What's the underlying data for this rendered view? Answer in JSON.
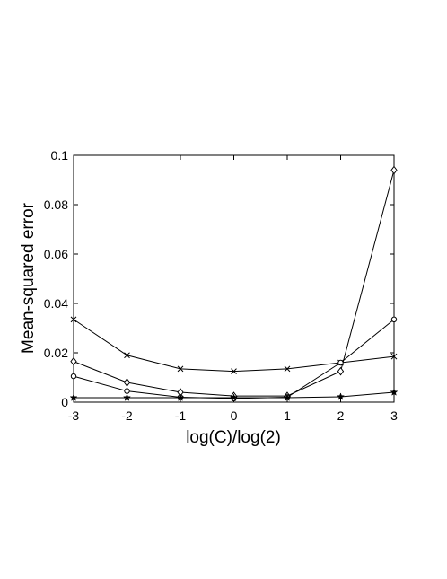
{
  "chart_data": {
    "type": "line",
    "title": "",
    "xlabel": "log(C)/log(2)",
    "ylabel": "Mean-squared error",
    "xlim": [
      -3,
      3
    ],
    "ylim": [
      0,
      0.1
    ],
    "x_ticks": [
      -3,
      -2,
      -1,
      0,
      1,
      2,
      3
    ],
    "x_tick_labels": [
      "-3",
      "-2",
      "-1",
      "0",
      "1",
      "2",
      "3"
    ],
    "y_ticks": [
      0,
      0.02,
      0.04,
      0.06,
      0.08,
      0.1
    ],
    "y_tick_labels": [
      "0",
      "0.02",
      "0.04",
      "0.06",
      "0.08",
      "0.1"
    ],
    "grid": false,
    "legend": "none",
    "x": [
      -3,
      -2,
      -1,
      0,
      1,
      2,
      3
    ],
    "series": [
      {
        "marker": "x",
        "values": [
          0.0335,
          0.019,
          0.0135,
          0.0125,
          0.0135,
          0.016,
          0.0185
        ]
      },
      {
        "marker": "diamond",
        "values": [
          0.0165,
          0.008,
          0.004,
          0.0025,
          0.0025,
          0.0125,
          0.094
        ]
      },
      {
        "marker": "circle",
        "values": [
          0.0105,
          0.0045,
          0.002,
          0.0015,
          0.002,
          0.016,
          0.0335
        ]
      },
      {
        "marker": "star",
        "values": [
          0.0018,
          0.0018,
          0.0018,
          0.0018,
          0.0018,
          0.0022,
          0.004
        ]
      }
    ],
    "line_color": "#000000"
  }
}
